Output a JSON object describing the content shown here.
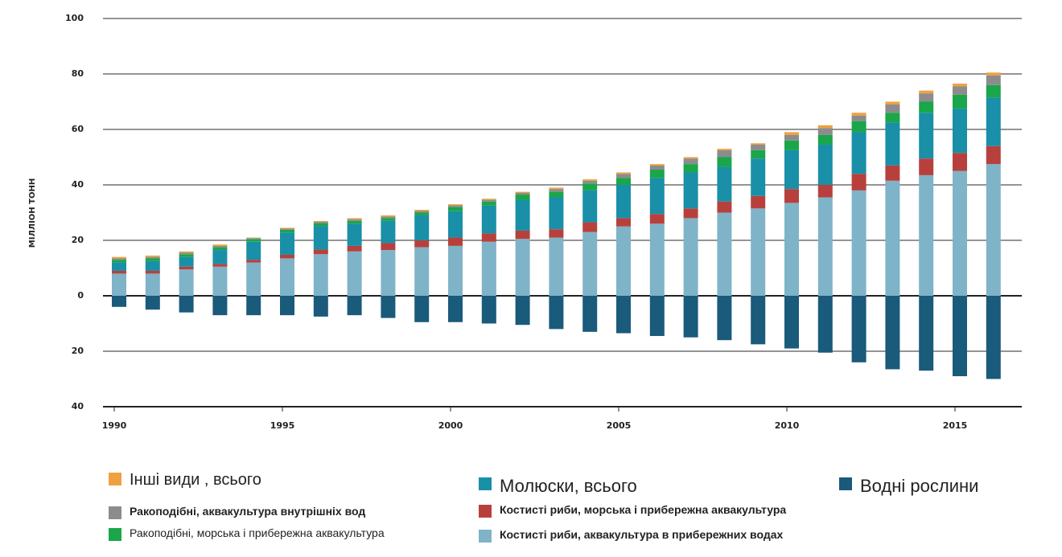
{
  "chart_data": {
    "type": "stacked-bar",
    "ylabel": "МІЛЛІОН ТОНН",
    "categories": [
      "1990",
      null,
      null,
      null,
      null,
      "1995",
      null,
      null,
      null,
      null,
      "2000",
      null,
      null,
      null,
      null,
      "2005",
      null,
      null,
      null,
      null,
      "2010",
      null,
      null,
      null,
      null,
      "2015",
      null
    ],
    "ylim": [
      -40,
      100
    ],
    "yticks": [
      {
        "value": -40,
        "label": "40"
      },
      {
        "value": -20,
        "label": "20"
      },
      0,
      20,
      40,
      60,
      80,
      100
    ],
    "grid": true,
    "series": [
      {
        "name": "Костисті риби, аквакультура в прибережних водах",
        "color": "#7fb3c8",
        "values": [
          8,
          8,
          9.5,
          10.5,
          12,
          13.5,
          15,
          16,
          16.5,
          17.5,
          18,
          19.5,
          20.5,
          21,
          23,
          25,
          26,
          28,
          30,
          31.5,
          33.5,
          35.5,
          38,
          41.5,
          43.5,
          45,
          47.5
        ]
      },
      {
        "name": "Костисті риби, морська і прибережна аквакультура",
        "color": "#b8403c",
        "values": [
          1,
          1,
          1,
          1,
          1,
          1.3,
          1.7,
          2,
          2.5,
          2.5,
          3,
          3,
          3,
          3,
          3.5,
          3,
          3.5,
          3.5,
          4,
          4.5,
          5,
          4.5,
          6,
          5.5,
          6,
          6.5,
          6.5
        ]
      },
      {
        "name": "Молюски, всього",
        "color": "#1a8fa8",
        "values": [
          3,
          3.5,
          3.5,
          5,
          6.5,
          8,
          8.5,
          8,
          8,
          9,
          9.5,
          10,
          11,
          11.5,
          11.5,
          12,
          13,
          13,
          12.5,
          13.5,
          14,
          14.5,
          15,
          15.5,
          16.5,
          16,
          17.5
        ]
      },
      {
        "name": "Ракоподібні, морська і прибережна аквакультура",
        "color": "#1aa64a",
        "values": [
          1,
          1,
          1,
          1,
          1,
          1,
          1,
          1,
          1,
          1,
          1.5,
          1.5,
          2,
          2,
          2.5,
          2.5,
          3,
          3,
          3.5,
          3,
          3.5,
          3.5,
          4,
          3.5,
          4,
          5,
          4.5
        ]
      },
      {
        "name": "Ракоподібні, аквакультура внутрішніх вод",
        "color": "#8c8c8c",
        "values": [
          0.5,
          0.5,
          0.5,
          0.5,
          0.3,
          0.4,
          0.5,
          0.6,
          0.6,
          0.6,
          0.6,
          0.6,
          0.6,
          1,
          1,
          1.5,
          1.5,
          2,
          2.5,
          2,
          2,
          2.5,
          2,
          3,
          3,
          3,
          3.5
        ]
      },
      {
        "name": "Інші види , всього",
        "color": "#f0a040",
        "values": [
          0.5,
          0.5,
          0.5,
          0.5,
          0.2,
          0.3,
          0.3,
          0.4,
          0.4,
          0.4,
          0.4,
          0.4,
          0.4,
          0.5,
          0.5,
          0.5,
          0.5,
          0.5,
          0.5,
          0.5,
          1,
          1,
          1,
          1,
          1,
          1,
          1
        ]
      },
      {
        "name": "Водні рослини",
        "color": "#1a5a7a",
        "values": [
          -4,
          -5,
          -6,
          -7,
          -7,
          -7,
          -7.5,
          -7,
          -8,
          -9.5,
          -9.5,
          -10,
          -10.5,
          -12,
          -13,
          -13.5,
          -14.5,
          -15,
          -16,
          -17.5,
          -19,
          -20.5,
          -24,
          -26.5,
          -27,
          -29,
          -30
        ]
      }
    ]
  }
}
